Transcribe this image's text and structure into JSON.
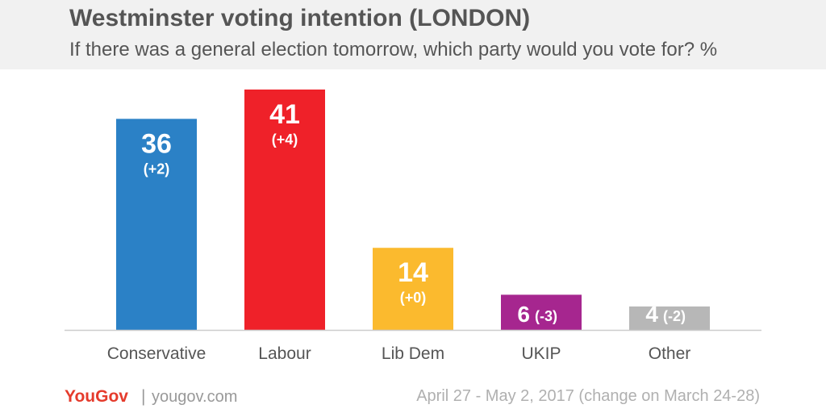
{
  "header": {
    "title": "Westminster voting intention (LONDON)",
    "subtitle": "If there was a general election tomorrow, which party would you vote for? %"
  },
  "footer": {
    "brand": "YouGov",
    "separator": "|",
    "url": "yougov.com",
    "date_note": "April 27 - May 2, 2017 (change on March 24-28)"
  },
  "chart_data": {
    "type": "bar",
    "title": "Westminster voting intention (LONDON)",
    "subtitle": "If there was a general election tomorrow, which party would you vote for? %",
    "categories": [
      "Conservative",
      "Labour",
      "Lib Dem",
      "UKIP",
      "Other"
    ],
    "values": [
      36,
      41,
      14,
      6,
      4
    ],
    "changes": [
      "(+2)",
      "(+4)",
      "(+0)",
      "(-3)",
      "(-2)"
    ],
    "colors": [
      "#2b81c6",
      "#ef2129",
      "#fbba2e",
      "#a6268f",
      "#b7b7b7"
    ],
    "ylim": [
      0,
      41
    ],
    "grid": false,
    "legend": "none"
  }
}
